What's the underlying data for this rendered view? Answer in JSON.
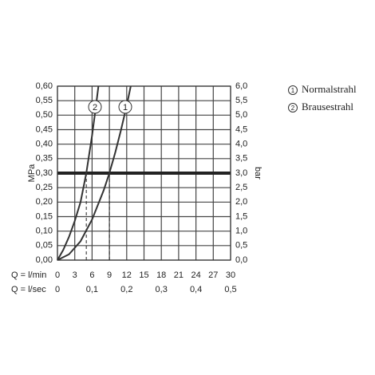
{
  "chart_data": {
    "type": "line",
    "x_label": "Q = l/min",
    "x2_label": "Q = l/sec",
    "y_label": "MPa",
    "y2_label": "bar",
    "xlim": [
      0,
      30
    ],
    "xticks": [
      0,
      3,
      6,
      9,
      12,
      15,
      18,
      21,
      24,
      27,
      30
    ],
    "x2lim": [
      0,
      0.5
    ],
    "x2ticks": [
      0,
      {
        "value": 0.1,
        "label": "0,1"
      },
      {
        "value": 0.2,
        "label": "0,2"
      },
      {
        "value": 0.3,
        "label": "0,3"
      },
      {
        "value": 0.4,
        "label": "0,4"
      },
      {
        "value": 0.5,
        "label": "0,5"
      }
    ],
    "ylim": [
      0,
      0.6
    ],
    "yticks": [
      {
        "value": 0,
        "label": "0,00"
      },
      {
        "value": 0.05,
        "label": "0,05"
      },
      {
        "value": 0.1,
        "label": "0,10"
      },
      {
        "value": 0.15,
        "label": "0,15"
      },
      {
        "value": 0.2,
        "label": "0,20"
      },
      {
        "value": 0.25,
        "label": "0,25"
      },
      {
        "value": 0.3,
        "label": "0,30"
      },
      {
        "value": 0.35,
        "label": "0,35"
      },
      {
        "value": 0.4,
        "label": "0,40"
      },
      {
        "value": 0.45,
        "label": "0,45"
      },
      {
        "value": 0.5,
        "label": "0,50"
      },
      {
        "value": 0.55,
        "label": "0,55"
      },
      {
        "value": 0.6,
        "label": "0,60"
      }
    ],
    "y2lim": [
      0,
      6
    ],
    "y2ticks": [
      {
        "value": 0,
        "label": "0,0"
      },
      {
        "value": 0.5,
        "label": "0,5"
      },
      {
        "value": 1,
        "label": "1,0"
      },
      {
        "value": 1.5,
        "label": "1,5"
      },
      {
        "value": 2,
        "label": "2,0"
      },
      {
        "value": 2.5,
        "label": "2,5"
      },
      {
        "value": 3,
        "label": "3,0"
      },
      {
        "value": 3.5,
        "label": "3,5"
      },
      {
        "value": 4,
        "label": "4,0"
      },
      {
        "value": 4.5,
        "label": "4,5"
      },
      {
        "value": 5,
        "label": "5,0"
      },
      {
        "value": 5.5,
        "label": "5,5"
      },
      {
        "value": 6,
        "label": "6,0"
      }
    ],
    "grid": true,
    "reference_y": 0.3,
    "reference_x": [
      5,
      9
    ],
    "series": [
      {
        "name": "Normalstrahl",
        "marker": "1",
        "color": "#333333",
        "x": [
          0,
          2,
          4,
          6,
          8,
          9,
          10,
          11,
          12,
          12.7
        ],
        "values": [
          0,
          0.02,
          0.065,
          0.14,
          0.24,
          0.3,
          0.37,
          0.448,
          0.533,
          0.6
        ]
      },
      {
        "name": "Brausestrahl",
        "marker": "2",
        "color": "#333333",
        "x": [
          0,
          1,
          2,
          3,
          4,
          5,
          6,
          6.6,
          7.1
        ],
        "values": [
          0,
          0.035,
          0.08,
          0.135,
          0.2,
          0.3,
          0.43,
          0.52,
          0.6
        ]
      }
    ]
  }
}
